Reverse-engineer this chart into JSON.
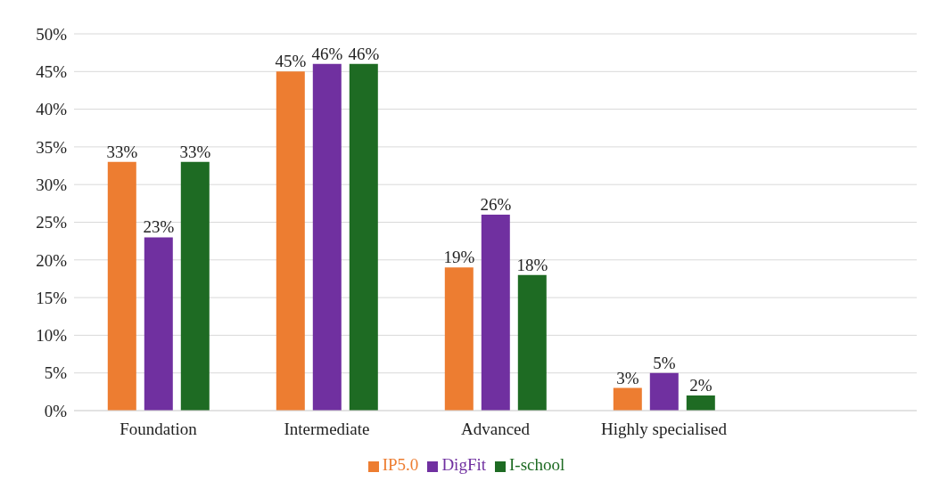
{
  "chart_data": {
    "type": "bar",
    "categories": [
      "Foundation",
      "Intermediate",
      "Advanced",
      "Highly specialised",
      null
    ],
    "series": [
      {
        "name": "IP5.0",
        "color": "#ed7d31",
        "values": [
          33,
          45,
          19,
          3,
          null
        ],
        "value_labels": [
          "33%",
          "45%",
          "19%",
          "3%",
          null
        ]
      },
      {
        "name": "DigFit",
        "color": "#7030a0",
        "values": [
          23,
          46,
          26,
          5,
          null
        ],
        "value_labels": [
          "23%",
          "46%",
          "26%",
          "5%",
          null
        ]
      },
      {
        "name": "I-school",
        "color": "#1e6b23",
        "values": [
          33,
          46,
          18,
          2,
          null
        ],
        "value_labels": [
          "33%",
          "46%",
          "18%",
          "2%",
          null
        ]
      }
    ],
    "ylim": [
      0,
      50
    ],
    "yticks": [
      {
        "value": 0,
        "label": "0%"
      },
      {
        "value": 5,
        "label": "5%"
      },
      {
        "value": 10,
        "label": "10%"
      },
      {
        "value": 15,
        "label": "15%"
      },
      {
        "value": 20,
        "label": "20%"
      },
      {
        "value": 25,
        "label": "25%"
      },
      {
        "value": 30,
        "label": "30%"
      },
      {
        "value": 35,
        "label": "35%"
      },
      {
        "value": 40,
        "label": "40%"
      },
      {
        "value": 45,
        "label": "45%"
      },
      {
        "value": 50,
        "label": "50%"
      }
    ],
    "grid": "y",
    "legend": "bottom"
  }
}
